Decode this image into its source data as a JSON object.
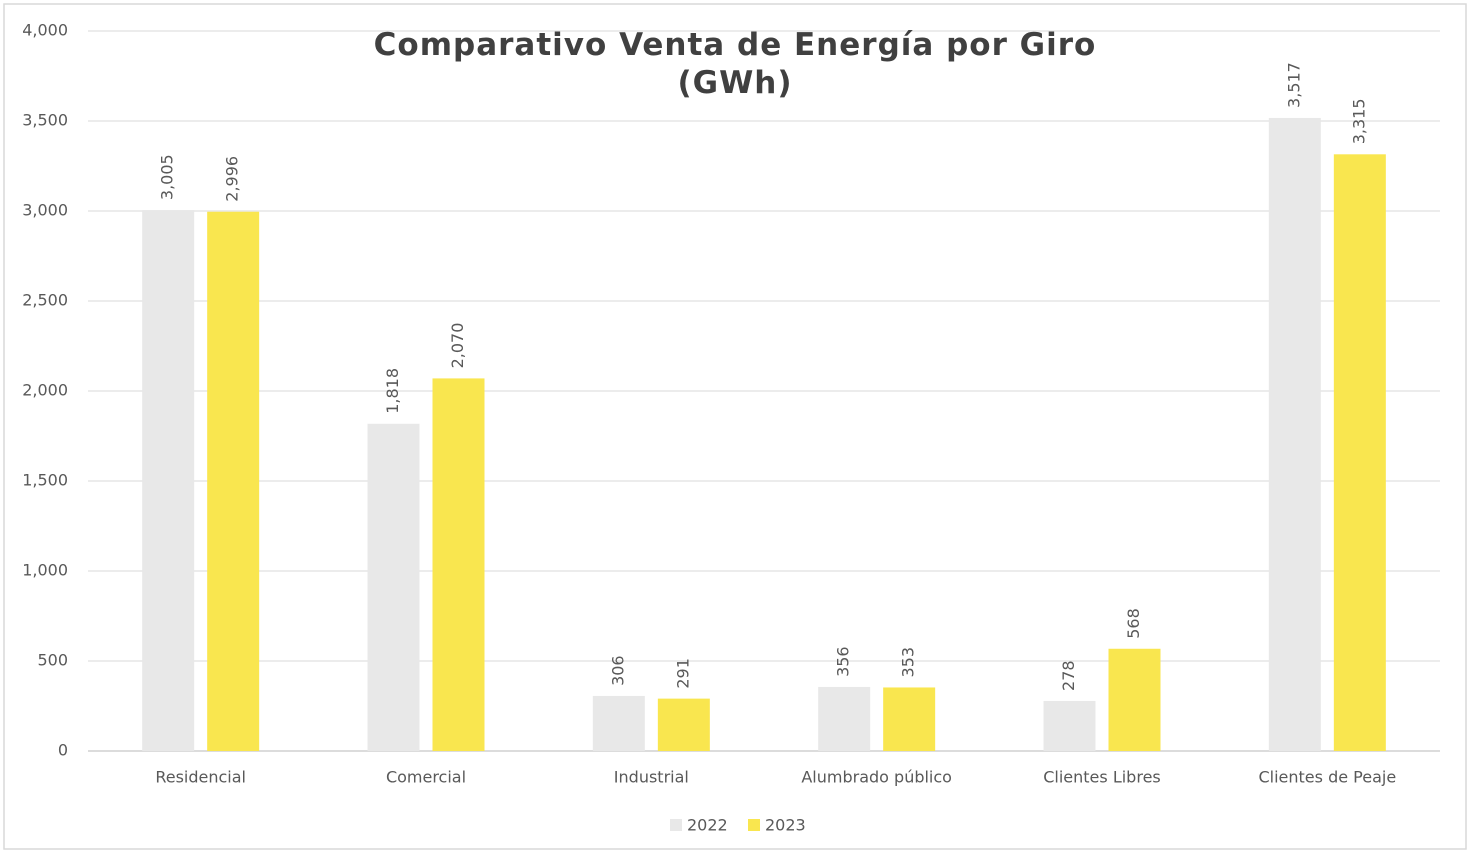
{
  "chart_data": {
    "type": "bar",
    "title": "Comparativo Venta de Energía por Giro\n(GWh)",
    "categories": [
      "Residencial",
      "Comercial",
      "Industrial",
      "Alumbrado público",
      "Clientes Libres",
      "Clientes de Peaje"
    ],
    "series": [
      {
        "name": "2022",
        "color": "#e8e8e8",
        "values": [
          3005,
          1818,
          306,
          356,
          278,
          3517
        ],
        "value_labels": [
          "3,005",
          "1,818",
          "306",
          "356",
          "278",
          "3,517"
        ]
      },
      {
        "name": "2023",
        "color": "#f9e64f",
        "values": [
          2996,
          2070,
          291,
          353,
          568,
          3315
        ],
        "value_labels": [
          "2,996",
          "2,070",
          "291",
          "353",
          "568",
          "3,315"
        ]
      }
    ],
    "ylim": [
      0,
      4000
    ],
    "yticks": [
      0,
      500,
      {
        "value": 1000,
        "label": "1,000"
      },
      {
        "value": 1500,
        "label": "1,500"
      },
      {
        "value": 2000,
        "label": "2,000"
      },
      {
        "value": 2500,
        "label": "2,500"
      },
      {
        "value": 3000,
        "label": "3,000"
      },
      {
        "value": 3500,
        "label": "3,500"
      },
      {
        "value": 4000,
        "label": "4,000"
      }
    ],
    "grid": true,
    "legend": "bottom"
  }
}
